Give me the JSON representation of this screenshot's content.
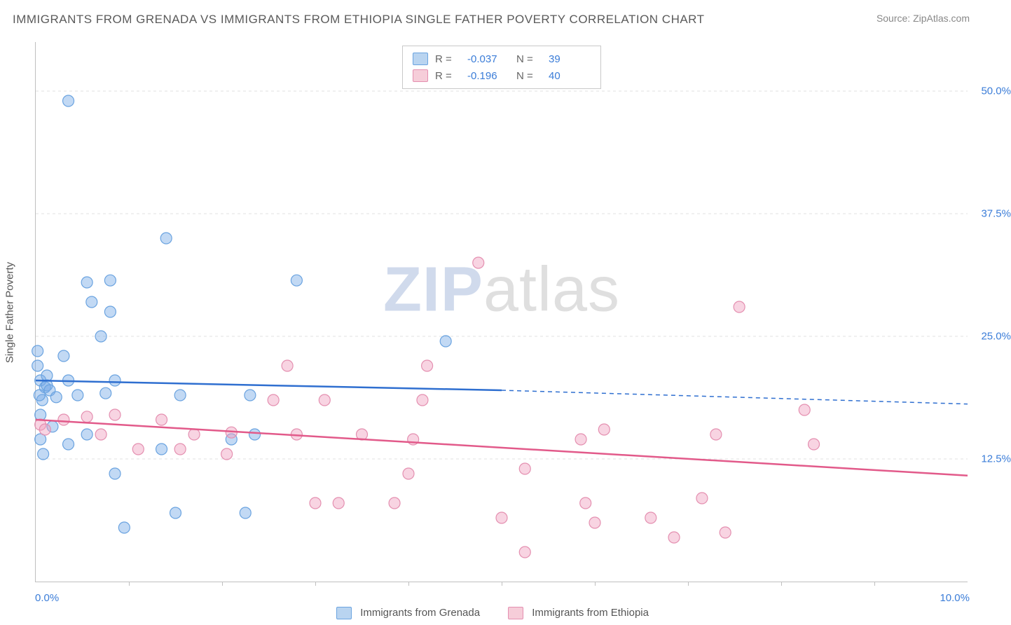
{
  "title": "IMMIGRANTS FROM GRENADA VS IMMIGRANTS FROM ETHIOPIA SINGLE FATHER POVERTY CORRELATION CHART",
  "source": "Source: ZipAtlas.com",
  "watermark": {
    "z": "ZIP",
    "rest": "atlas"
  },
  "ylabel": "Single Father Poverty",
  "chart": {
    "type": "scatter",
    "xlim": [
      0,
      10
    ],
    "ylim": [
      0,
      55
    ],
    "xtick_labels": {
      "left": "0.0%",
      "right": "10.0%"
    },
    "xtick_positions": [
      1,
      2,
      3,
      4,
      5,
      6,
      7,
      8,
      9
    ],
    "gridlines": [
      {
        "y": 12.5,
        "label": "12.5%"
      },
      {
        "y": 25.0,
        "label": "25.0%"
      },
      {
        "y": 37.5,
        "label": "37.5%"
      },
      {
        "y": 50.0,
        "label": "50.0%"
      }
    ],
    "background_color": "#ffffff",
    "grid_color": "#e2e2e2",
    "axis_color": "#bfbfbf",
    "marker_radius": 8,
    "marker_opacity": 0.55,
    "series": [
      {
        "name": "Immigrants from Grenada",
        "color_fill": "rgba(120,170,230,0.45)",
        "color_stroke": "#6aa3e0",
        "swatch_fill": "#b9d4f0",
        "swatch_border": "#6aa3e0",
        "line_color": "#2f6fd0",
        "R": "-0.037",
        "N": "39",
        "trend": {
          "solid": {
            "x1": 0,
            "y1": 20.5,
            "x2": 5,
            "y2": 19.5
          },
          "dashed": {
            "x1": 5,
            "y1": 19.5,
            "x2": 10,
            "y2": 18.1
          }
        },
        "points": [
          {
            "x": 0.35,
            "y": 49.0
          },
          {
            "x": 0.05,
            "y": 20.5
          },
          {
            "x": 0.07,
            "y": 18.5
          },
          {
            "x": 0.1,
            "y": 19.8
          },
          {
            "x": 0.12,
            "y": 20.0
          },
          {
            "x": 0.05,
            "y": 17.0
          },
          {
            "x": 0.18,
            "y": 15.8
          },
          {
            "x": 0.05,
            "y": 14.5
          },
          {
            "x": 0.08,
            "y": 13.0
          },
          {
            "x": 0.02,
            "y": 22.0
          },
          {
            "x": 0.02,
            "y": 23.5
          },
          {
            "x": 0.3,
            "y": 23.0
          },
          {
            "x": 0.55,
            "y": 30.5
          },
          {
            "x": 0.8,
            "y": 30.7
          },
          {
            "x": 0.6,
            "y": 28.5
          },
          {
            "x": 0.8,
            "y": 27.5
          },
          {
            "x": 0.7,
            "y": 25.0
          },
          {
            "x": 1.4,
            "y": 35.0
          },
          {
            "x": 0.85,
            "y": 20.5
          },
          {
            "x": 0.75,
            "y": 19.2
          },
          {
            "x": 0.45,
            "y": 19.0
          },
          {
            "x": 0.55,
            "y": 15.0
          },
          {
            "x": 0.35,
            "y": 14.0
          },
          {
            "x": 0.85,
            "y": 11.0
          },
          {
            "x": 0.95,
            "y": 5.5
          },
          {
            "x": 1.35,
            "y": 13.5
          },
          {
            "x": 1.5,
            "y": 7.0
          },
          {
            "x": 1.55,
            "y": 19.0
          },
          {
            "x": 2.1,
            "y": 14.5
          },
          {
            "x": 2.25,
            "y": 7.0
          },
          {
            "x": 2.3,
            "y": 19.0
          },
          {
            "x": 2.35,
            "y": 15.0
          },
          {
            "x": 2.8,
            "y": 30.7
          },
          {
            "x": 4.4,
            "y": 24.5
          },
          {
            "x": 0.12,
            "y": 21.0
          },
          {
            "x": 0.15,
            "y": 19.5
          },
          {
            "x": 0.22,
            "y": 18.8
          },
          {
            "x": 0.35,
            "y": 20.5
          },
          {
            "x": 0.04,
            "y": 19.0
          }
        ]
      },
      {
        "name": "Immigrants from Ethiopia",
        "color_fill": "rgba(240,160,190,0.45)",
        "color_stroke": "#e48fb0",
        "swatch_fill": "#f6cdd9",
        "swatch_border": "#e48fb0",
        "line_color": "#e25a8a",
        "R": "-0.196",
        "N": "40",
        "trend": {
          "solid": {
            "x1": 0,
            "y1": 16.5,
            "x2": 10,
            "y2": 10.8
          }
        },
        "points": [
          {
            "x": 0.05,
            "y": 16.0
          },
          {
            "x": 0.1,
            "y": 15.5
          },
          {
            "x": 0.3,
            "y": 16.5
          },
          {
            "x": 0.55,
            "y": 16.8
          },
          {
            "x": 0.7,
            "y": 15.0
          },
          {
            "x": 0.85,
            "y": 17.0
          },
          {
            "x": 1.1,
            "y": 13.5
          },
          {
            "x": 1.35,
            "y": 16.5
          },
          {
            "x": 1.55,
            "y": 13.5
          },
          {
            "x": 1.7,
            "y": 15.0
          },
          {
            "x": 2.05,
            "y": 13.0
          },
          {
            "x": 2.1,
            "y": 15.2
          },
          {
            "x": 2.55,
            "y": 18.5
          },
          {
            "x": 2.7,
            "y": 22.0
          },
          {
            "x": 2.8,
            "y": 15.0
          },
          {
            "x": 3.0,
            "y": 8.0
          },
          {
            "x": 3.1,
            "y": 18.5
          },
          {
            "x": 3.25,
            "y": 8.0
          },
          {
            "x": 3.5,
            "y": 15.0
          },
          {
            "x": 3.85,
            "y": 8.0
          },
          {
            "x": 4.0,
            "y": 11.0
          },
          {
            "x": 4.05,
            "y": 14.5
          },
          {
            "x": 4.15,
            "y": 18.5
          },
          {
            "x": 4.2,
            "y": 22.0
          },
          {
            "x": 4.75,
            "y": 32.5
          },
          {
            "x": 5.0,
            "y": 6.5
          },
          {
            "x": 5.25,
            "y": 11.5
          },
          {
            "x": 5.25,
            "y": 3.0
          },
          {
            "x": 5.85,
            "y": 14.5
          },
          {
            "x": 5.9,
            "y": 8.0
          },
          {
            "x": 6.0,
            "y": 6.0
          },
          {
            "x": 6.1,
            "y": 15.5
          },
          {
            "x": 6.6,
            "y": 6.5
          },
          {
            "x": 6.85,
            "y": 4.5
          },
          {
            "x": 7.15,
            "y": 8.5
          },
          {
            "x": 7.3,
            "y": 15.0
          },
          {
            "x": 7.4,
            "y": 5.0
          },
          {
            "x": 7.55,
            "y": 28.0
          },
          {
            "x": 8.25,
            "y": 17.5
          },
          {
            "x": 8.35,
            "y": 14.0
          }
        ]
      }
    ]
  },
  "legend_top_labels": {
    "R": "R =",
    "N": "N ="
  },
  "legend_bottom": [
    {
      "label": "Immigrants from Grenada",
      "series": 0
    },
    {
      "label": "Immigrants from Ethiopia",
      "series": 1
    }
  ]
}
